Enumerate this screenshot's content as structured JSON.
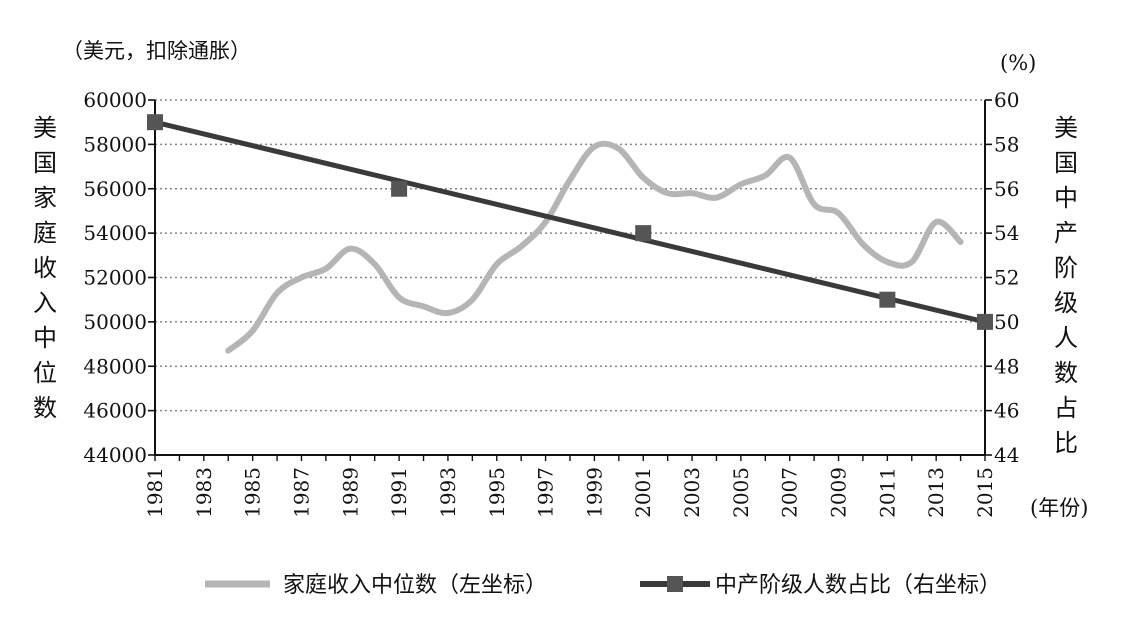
{
  "chart_data": {
    "type": "line",
    "left_unit": "（美元，扣除通胀）",
    "right_unit": "(%)",
    "x_unit": "(年份)",
    "ylabel_left": "美国家庭收入中位数",
    "ylabel_right": "美国中产阶级人数占比",
    "x_ticks": [
      "1981",
      "1983",
      "1985",
      "1987",
      "1989",
      "1991",
      "1993",
      "1995",
      "1997",
      "1999",
      "2001",
      "2003",
      "2005",
      "2007",
      "2009",
      "2011",
      "2013",
      "2015"
    ],
    "x_range": [
      1981,
      2015
    ],
    "y_left_ticks": [
      "60000",
      "58000",
      "56000",
      "54000",
      "52000",
      "50000",
      "48000",
      "46000",
      "44000"
    ],
    "y_left_range": [
      44000,
      60000
    ],
    "y_right_ticks": [
      "60",
      "58",
      "56",
      "54",
      "52",
      "50",
      "48",
      "46",
      "44"
    ],
    "y_right_range": [
      44,
      60
    ],
    "grid": "horizontal dotted",
    "legend_position": "bottom",
    "series": [
      {
        "name": "家庭收入中位数（左坐标）",
        "axis": "left",
        "color": "#b5b5b5",
        "x": [
          1984,
          1985,
          1986,
          1987,
          1988,
          1989,
          1990,
          1991,
          1992,
          1993,
          1994,
          1995,
          1996,
          1997,
          1998,
          1999,
          2000,
          2001,
          2002,
          2003,
          2004,
          2005,
          2006,
          2007,
          2008,
          2009,
          2010,
          2011,
          2012,
          2013,
          2014
        ],
        "values": [
          48700,
          49600,
          51300,
          52000,
          52400,
          53300,
          52600,
          51100,
          50700,
          50400,
          51000,
          52600,
          53400,
          54500,
          56400,
          57900,
          57800,
          56500,
          55800,
          55800,
          55600,
          56200,
          56600,
          57400,
          55300,
          54900,
          53500,
          52700,
          52700,
          54500,
          53600
        ]
      },
      {
        "name": "中产阶级人数占比（右坐标）",
        "axis": "right",
        "color": "#3a3a3a",
        "marker_color": "#555555",
        "x": [
          1981,
          1991,
          2001,
          2011,
          2015
        ],
        "values": [
          59,
          56,
          54,
          51,
          50
        ]
      }
    ]
  }
}
